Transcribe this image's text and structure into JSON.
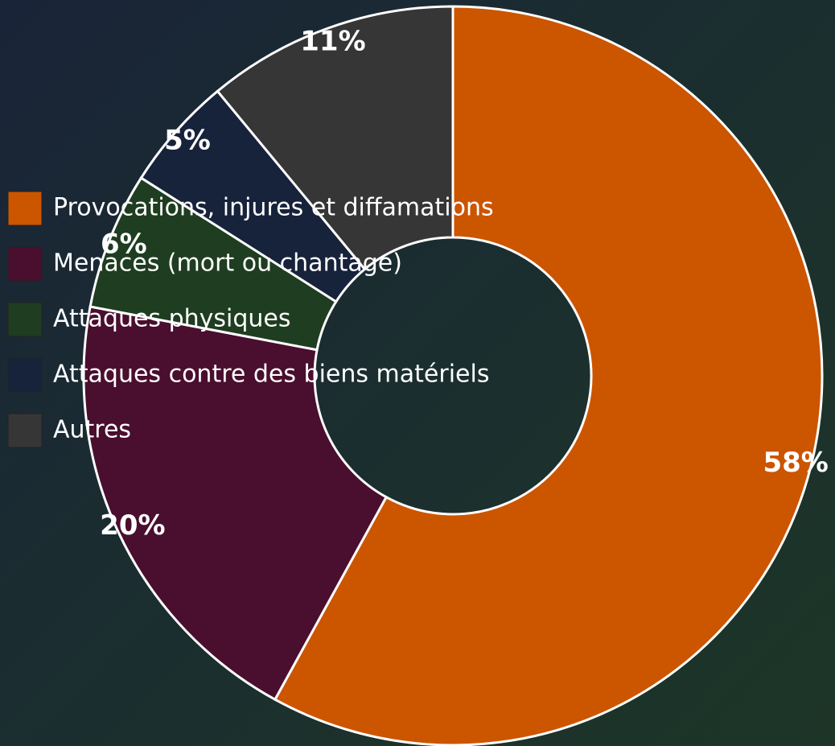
{
  "chart_data": {
    "type": "donut",
    "categories": [
      "Provocations, injures et diffamations",
      "Menaces (mort ou chantage)",
      "Attaques physiques",
      "Attaques contre des biens matériels",
      "Autres"
    ],
    "values": [
      58,
      20,
      6,
      5,
      11
    ],
    "value_labels": [
      "58%",
      "20%",
      "6%",
      "5%",
      "11%"
    ],
    "colors": [
      "#cc5500",
      "#4a0e2e",
      "#1f3d20",
      "#17223b",
      "#363636"
    ],
    "legend": "left"
  }
}
